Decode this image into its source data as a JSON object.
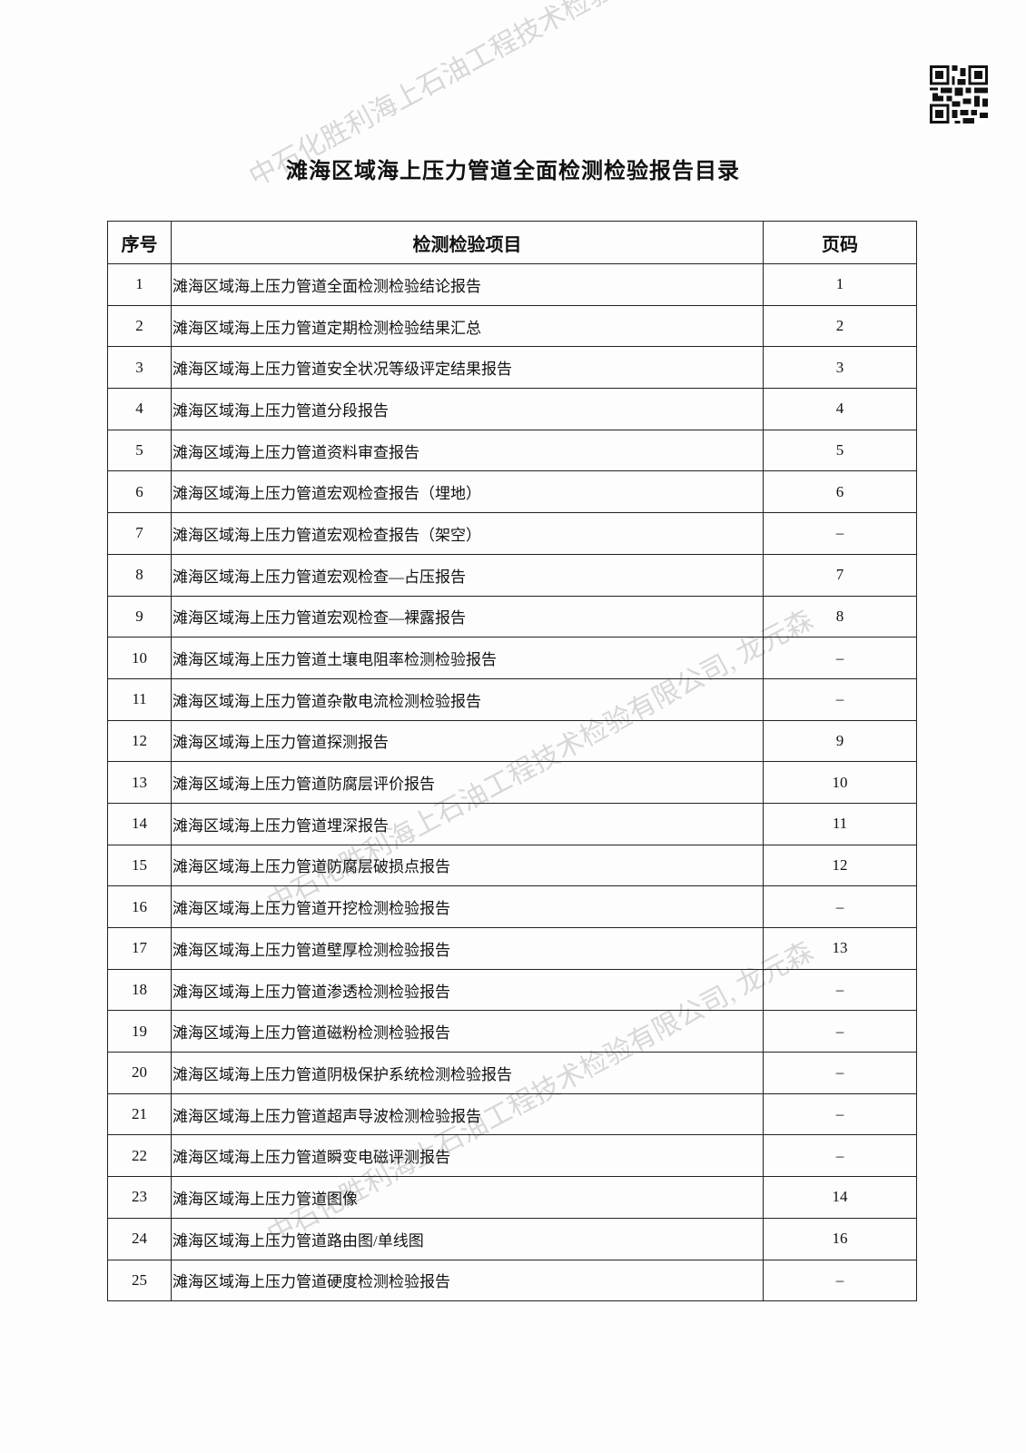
{
  "watermark": "中石化胜利海上石油工程技术检验有限公司, 龙元森",
  "title": "滩海区域海上压力管道全面检测检验报告目录",
  "table": {
    "headers": [
      "序号",
      "检测检验项目",
      "页码"
    ],
    "rows": [
      [
        "1",
        "滩海区域海上压力管道全面检测检验结论报告",
        "1"
      ],
      [
        "2",
        "滩海区域海上压力管道定期检测检验结果汇总",
        "2"
      ],
      [
        "3",
        "滩海区域海上压力管道安全状况等级评定结果报告",
        "3"
      ],
      [
        "4",
        "滩海区域海上压力管道分段报告",
        "4"
      ],
      [
        "5",
        "滩海区域海上压力管道资料审查报告",
        "5"
      ],
      [
        "6",
        "滩海区域海上压力管道宏观检查报告（埋地）",
        "6"
      ],
      [
        "7",
        "滩海区域海上压力管道宏观检查报告（架空）",
        "–"
      ],
      [
        "8",
        "滩海区域海上压力管道宏观检查—占压报告",
        "7"
      ],
      [
        "9",
        "滩海区域海上压力管道宏观检查—裸露报告",
        "8"
      ],
      [
        "10",
        "滩海区域海上压力管道土壤电阻率检测检验报告",
        "–"
      ],
      [
        "11",
        "滩海区域海上压力管道杂散电流检测检验报告",
        "–"
      ],
      [
        "12",
        "滩海区域海上压力管道探测报告",
        "9"
      ],
      [
        "13",
        "滩海区域海上压力管道防腐层评价报告",
        "10"
      ],
      [
        "14",
        "滩海区域海上压力管道埋深报告",
        "11"
      ],
      [
        "15",
        "滩海区域海上压力管道防腐层破损点报告",
        "12"
      ],
      [
        "16",
        "滩海区域海上压力管道开挖检测检验报告",
        "–"
      ],
      [
        "17",
        "滩海区域海上压力管道壁厚检测检验报告",
        "13"
      ],
      [
        "18",
        "滩海区域海上压力管道渗透检测检验报告",
        "–"
      ],
      [
        "19",
        "滩海区域海上压力管道磁粉检测检验报告",
        "–"
      ],
      [
        "20",
        "滩海区域海上压力管道阴极保护系统检测检验报告",
        "–"
      ],
      [
        "21",
        "滩海区域海上压力管道超声导波检测检验报告",
        "–"
      ],
      [
        "22",
        "滩海区域海上压力管道瞬变电磁评测报告",
        "–"
      ],
      [
        "23",
        "滩海区域海上压力管道图像",
        "14"
      ],
      [
        "24",
        "滩海区域海上压力管道路由图/单线图",
        "16"
      ],
      [
        "25",
        "滩海区域海上压力管道硬度检测检验报告",
        "–"
      ]
    ]
  }
}
